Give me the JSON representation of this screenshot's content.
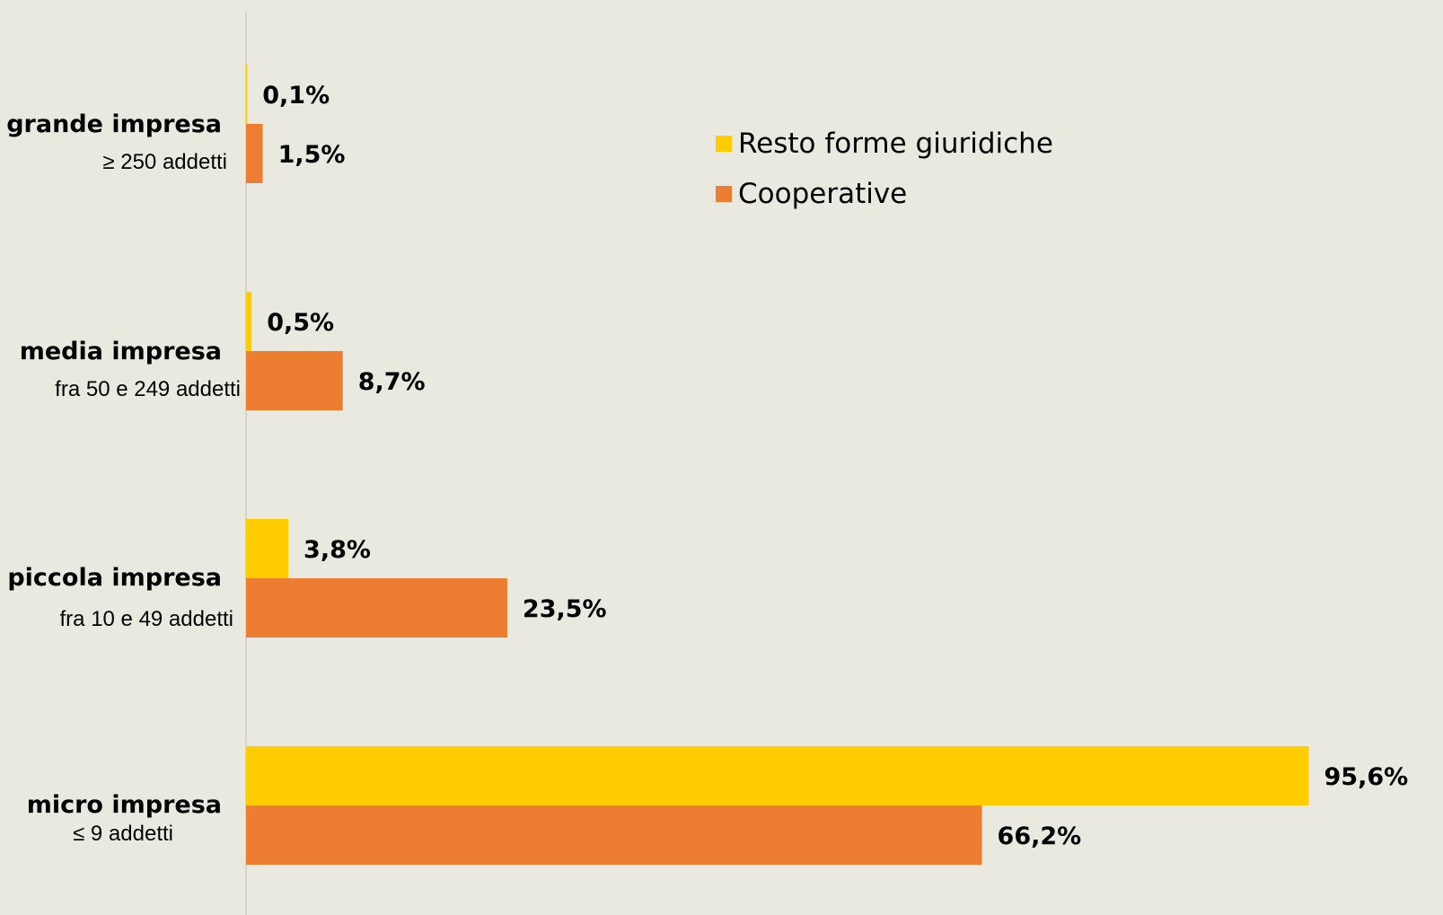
{
  "chart_data": {
    "type": "bar",
    "orientation": "horizontal",
    "categories": [
      {
        "label": "grande impresa",
        "sublabel": "≥ 250 addetti"
      },
      {
        "label": "media impresa",
        "sublabel": "fra 50 e 249 addetti"
      },
      {
        "label": "piccola impresa",
        "sublabel": "fra 10 e 49 addetti"
      },
      {
        "label": "micro impresa",
        "sublabel": "≤ 9 addetti"
      }
    ],
    "series": [
      {
        "name": "Resto forme giuridiche",
        "color": "#FFCC00",
        "values": [
          0.1,
          0.5,
          3.8,
          95.6
        ],
        "labels": [
          "0,1%",
          "0,5%",
          "3,8%",
          "95,6%"
        ]
      },
      {
        "name": "Cooperative",
        "color": "#ED7D31",
        "values": [
          1.5,
          8.7,
          23.5,
          66.2
        ],
        "labels": [
          "1,5%",
          "8,7%",
          "23,5%",
          "66,2%"
        ]
      }
    ],
    "xlim": [
      0,
      100
    ],
    "grid": false,
    "axis_color": "#D6D5CC",
    "legend_position": "top-center"
  }
}
